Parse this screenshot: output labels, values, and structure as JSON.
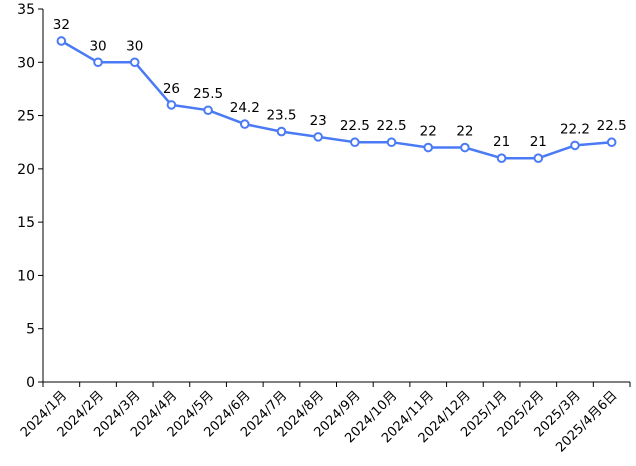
{
  "chart_data": {
    "type": "line",
    "title": "",
    "xlabel": "",
    "ylabel": "",
    "ylim": [
      0,
      35
    ],
    "yticks": [
      "0",
      "5",
      "10",
      "15",
      "20",
      "25",
      "30",
      "35"
    ],
    "grid": false,
    "legend": "none",
    "categories": [
      "2024/1月",
      "2024/2月",
      "2024/3月",
      "2024/4月",
      "2024/5月",
      "2024/6月",
      "2024/7月",
      "2024/8月",
      "2024/9月",
      "2024/10月",
      "2024/11月",
      "2024/12月",
      "2025/1月",
      "2025/2月",
      "2025/3月",
      "2025/4月6日"
    ],
    "series": [
      {
        "name": "series-1",
        "color": "#4a7bf5",
        "values": [
          32,
          30,
          30,
          26,
          25.5,
          24.2,
          23.5,
          23,
          22.5,
          22.5,
          22,
          22,
          21,
          21,
          22.2,
          22.5
        ],
        "value_labels": [
          "32",
          "30",
          "30",
          "26",
          "25.5",
          "24.2",
          "23.5",
          "23",
          "22.5",
          "22.5",
          "22",
          "22",
          "21",
          "21",
          "22.2",
          "22.5"
        ]
      }
    ]
  }
}
